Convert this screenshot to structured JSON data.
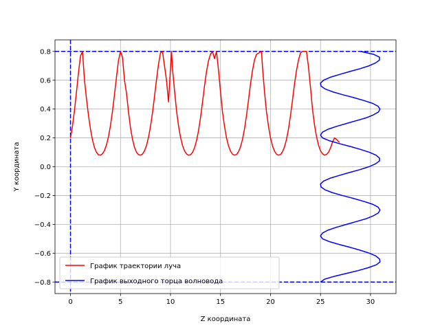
{
  "chart_data": {
    "type": "line",
    "title": "",
    "xlabel": "Z координата",
    "ylabel": "Y координата",
    "xlim": [
      -1.55,
      32.55
    ],
    "ylim": [
      -0.88,
      0.88
    ],
    "xticks": [
      0,
      5,
      10,
      15,
      20,
      25,
      30
    ],
    "xtick_labels": [
      "0",
      "5",
      "10",
      "15",
      "20",
      "25",
      "30"
    ],
    "yticks": [
      -0.8,
      -0.6,
      -0.4,
      -0.2,
      0.0,
      0.2,
      0.4,
      0.6,
      0.8
    ],
    "ytick_labels": [
      "−0.8",
      "−0.6",
      "−0.4",
      "−0.2",
      "0.0",
      "0.2",
      "0.4",
      "0.6",
      "0.8"
    ],
    "grid": true,
    "legend_position": "lower-left",
    "series": [
      {
        "name": "График траектории луча",
        "color": "#ff0000",
        "x": [
          0.0,
          0.2,
          0.4,
          0.6,
          0.8,
          1.0,
          1.2,
          1.4,
          1.6,
          1.8,
          2.0,
          2.2,
          2.4,
          2.6,
          2.8,
          3.0,
          3.2,
          3.4,
          3.6,
          3.8,
          4.0,
          4.2,
          4.4,
          4.6,
          4.8,
          5.0,
          5.2,
          5.4,
          5.6,
          5.8,
          6.0,
          6.2,
          6.4,
          6.6,
          6.8,
          7.0,
          7.2,
          7.4,
          7.6,
          7.8,
          8.0,
          8.2,
          8.4,
          8.6,
          8.8,
          9.0,
          9.2,
          9.4,
          9.6,
          9.8,
          10.1,
          10.2,
          10.4,
          10.6,
          10.8,
          11.0,
          11.2,
          11.4,
          11.6,
          11.8,
          12.0,
          12.2,
          12.4,
          12.6,
          12.8,
          13.0,
          13.2,
          13.4,
          13.6,
          13.8,
          14.0,
          14.2,
          14.4,
          14.6,
          14.8,
          15.0,
          15.2,
          15.4,
          15.6,
          15.8,
          16.0,
          16.2,
          16.4,
          16.6,
          16.8,
          17.0,
          17.2,
          17.4,
          17.6,
          17.8,
          18.0,
          18.2,
          18.4,
          18.6,
          19.1,
          19.2,
          19.4,
          19.6,
          19.8,
          20.0,
          20.2,
          20.4,
          20.6,
          20.8,
          21.0,
          21.2,
          21.4,
          21.6,
          21.8,
          22.0,
          22.2,
          22.4,
          22.6,
          22.8,
          23.0,
          23.2,
          23.6,
          23.8,
          24.0,
          24.2,
          24.4,
          24.6,
          24.8,
          25.0,
          25.2,
          25.4,
          25.6,
          25.8,
          26.0,
          26.2,
          26.4,
          26.6,
          26.8,
          26.9
        ],
        "y": [
          0.2,
          0.283,
          0.392,
          0.52,
          0.653,
          0.769,
          0.8,
          0.6,
          0.47,
          0.355,
          0.259,
          0.185,
          0.133,
          0.1,
          0.083,
          0.08,
          0.09,
          0.113,
          0.152,
          0.209,
          0.287,
          0.386,
          0.501,
          0.624,
          0.738,
          0.8,
          0.76,
          0.6,
          0.51,
          0.38,
          0.27,
          0.19,
          0.135,
          0.1,
          0.084,
          0.08,
          0.088,
          0.11,
          0.147,
          0.204,
          0.28,
          0.375,
          0.487,
          0.604,
          0.71,
          0.79,
          0.8,
          0.7,
          0.6,
          0.45,
          0.8,
          0.68,
          0.53,
          0.39,
          0.285,
          0.205,
          0.148,
          0.111,
          0.089,
          0.08,
          0.083,
          0.099,
          0.131,
          0.18,
          0.25,
          0.34,
          0.447,
          0.56,
          0.66,
          0.735,
          0.78,
          0.8,
          0.75,
          0.8,
          0.67,
          0.52,
          0.38,
          0.28,
          0.2,
          0.145,
          0.108,
          0.087,
          0.08,
          0.085,
          0.103,
          0.138,
          0.19,
          0.262,
          0.355,
          0.463,
          0.573,
          0.668,
          0.74,
          0.78,
          0.8,
          0.69,
          0.52,
          0.38,
          0.28,
          0.2,
          0.145,
          0.108,
          0.087,
          0.08,
          0.085,
          0.103,
          0.138,
          0.19,
          0.262,
          0.355,
          0.463,
          0.573,
          0.668,
          0.74,
          0.79,
          0.8,
          0.8,
          0.69,
          0.55,
          0.4,
          0.29,
          0.21,
          0.15,
          0.11,
          0.09,
          0.08,
          0.085,
          0.1,
          0.13,
          0.17,
          0.2,
          0.19,
          0.175,
          0.17
        ]
      },
      {
        "name": "График выходного торца волновода",
        "color": "#0000ff",
        "y_samples": [
          -0.8,
          -0.78,
          -0.76,
          -0.74,
          -0.72,
          -0.7,
          -0.68,
          -0.66,
          -0.64,
          -0.62,
          -0.6,
          -0.58,
          -0.56,
          -0.54,
          -0.52,
          -0.5,
          -0.48,
          -0.46,
          -0.44,
          -0.42,
          -0.4,
          -0.38,
          -0.36,
          -0.34,
          -0.32,
          -0.3,
          -0.28,
          -0.26,
          -0.24,
          -0.22,
          -0.2,
          -0.18,
          -0.16,
          -0.14,
          -0.12,
          -0.1,
          -0.08,
          -0.06,
          -0.04,
          -0.02,
          0.0,
          0.02,
          0.04,
          0.06,
          0.08,
          0.1,
          0.12,
          0.14,
          0.16,
          0.18,
          0.2,
          0.22,
          0.24,
          0.26,
          0.28,
          0.3,
          0.32,
          0.34,
          0.36,
          0.38,
          0.4,
          0.42,
          0.44,
          0.46,
          0.48,
          0.5,
          0.52,
          0.54,
          0.56,
          0.58,
          0.6,
          0.62,
          0.64,
          0.66,
          0.68,
          0.7,
          0.72,
          0.74,
          0.76,
          0.78,
          0.8
        ],
        "z_samples": [
          25.0,
          25.42,
          26.4,
          27.6,
          28.8,
          29.8,
          30.6,
          30.95,
          30.9,
          30.55,
          29.9,
          29.0,
          28.0,
          26.9,
          25.9,
          25.2,
          25.0,
          25.2,
          25.75,
          26.6,
          27.6,
          28.6,
          29.6,
          30.3,
          30.8,
          30.95,
          30.75,
          30.2,
          29.3,
          28.3,
          27.2,
          26.2,
          25.45,
          25.05,
          25.0,
          25.3,
          25.95,
          26.9,
          27.9,
          28.95,
          29.85,
          30.5,
          30.9,
          30.9,
          30.55,
          29.9,
          29.0,
          28.0,
          26.9,
          25.9,
          25.2,
          25.0,
          25.2,
          25.75,
          26.6,
          27.6,
          28.6,
          29.6,
          30.3,
          30.8,
          30.95,
          30.75,
          30.2,
          29.3,
          28.3,
          27.2,
          26.2,
          25.45,
          25.05,
          25.0,
          25.3,
          25.95,
          26.9,
          27.9,
          28.95,
          29.85,
          30.5,
          30.9,
          30.9,
          30.3,
          29.0
        ]
      }
    ],
    "reference_lines": [
      {
        "orientation": "vertical",
        "value": 0,
        "color": "#0000ff",
        "style": "dashed"
      },
      {
        "orientation": "horizontal",
        "value": 0.8,
        "color": "#0000ff",
        "style": "dashed"
      },
      {
        "orientation": "horizontal",
        "value": -0.8,
        "color": "#0000ff",
        "style": "dashed"
      }
    ]
  }
}
